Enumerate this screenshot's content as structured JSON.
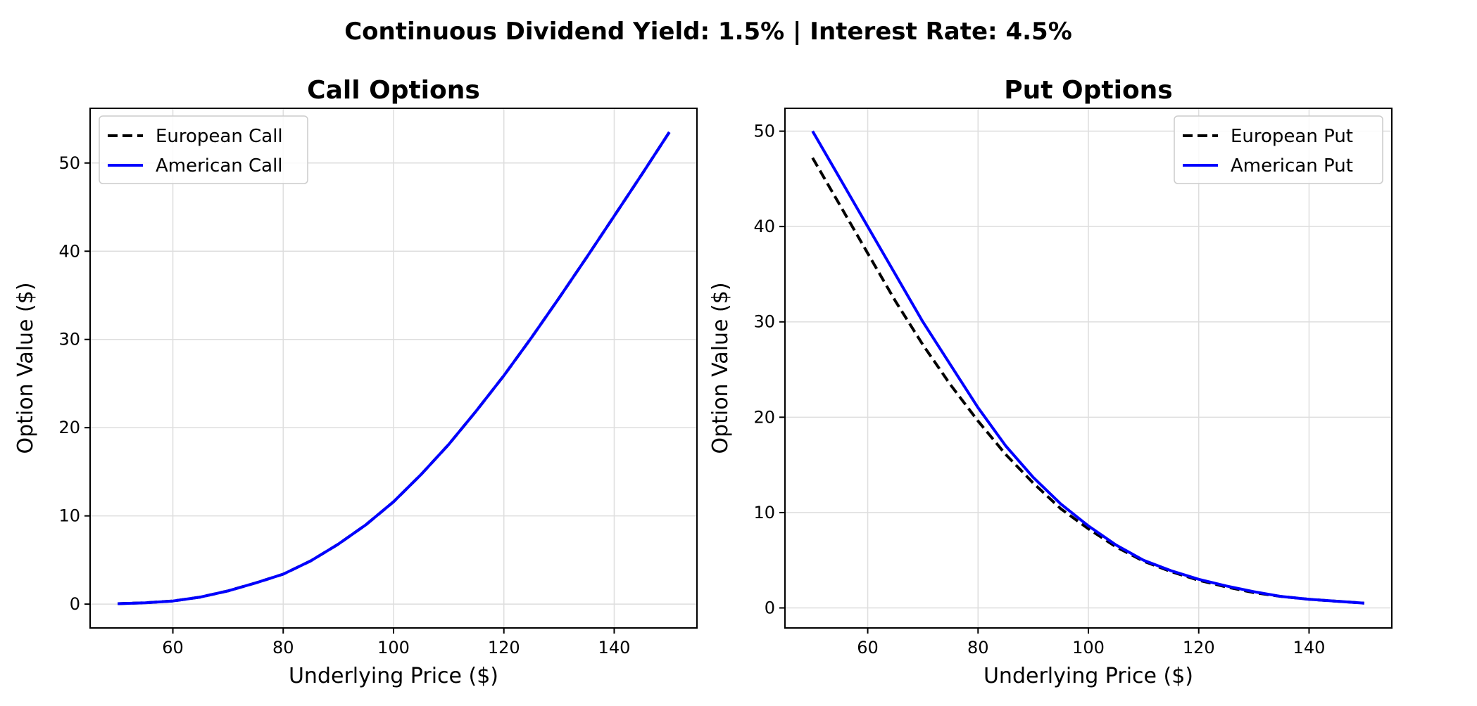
{
  "figure": {
    "suptitle": "Continuous Dividend Yield: 1.5% | Interest Rate: 4.5%"
  },
  "colors": {
    "european": "#000000",
    "american": "#0000ff"
  },
  "chart_data": [
    {
      "type": "line",
      "title": "Call Options",
      "xlabel": "Underlying Price ($)",
      "ylabel": "Option Value ($)",
      "xlim": [
        45,
        155
      ],
      "ylim": [
        -2.7,
        56.2
      ],
      "xticks": [
        60,
        80,
        100,
        120,
        140
      ],
      "yticks": [
        0,
        10,
        20,
        30,
        40,
        50
      ],
      "grid": true,
      "legend_position": "top-left",
      "x": [
        50,
        55,
        60,
        65,
        70,
        75,
        80,
        85,
        90,
        95,
        100,
        105,
        110,
        115,
        120,
        125,
        130,
        135,
        140,
        145,
        150
      ],
      "series": [
        {
          "name": "European Call",
          "style": "dashed",
          "color": "#000000",
          "values": [
            0.05,
            0.15,
            0.35,
            0.8,
            1.5,
            2.4,
            3.4,
            4.9,
            6.8,
            9.0,
            11.6,
            14.7,
            18.1,
            21.9,
            25.9,
            30.2,
            34.7,
            39.3,
            44.0,
            48.7,
            53.5
          ]
        },
        {
          "name": "American Call",
          "style": "solid",
          "color": "#0000ff",
          "values": [
            0.05,
            0.15,
            0.35,
            0.8,
            1.5,
            2.4,
            3.4,
            4.9,
            6.8,
            9.0,
            11.6,
            14.7,
            18.1,
            21.9,
            25.9,
            30.2,
            34.7,
            39.3,
            44.0,
            48.7,
            53.5
          ]
        }
      ]
    },
    {
      "type": "line",
      "title": "Put Options",
      "xlabel": "Underlying Price ($)",
      "ylabel": "Option Value ($)",
      "xlim": [
        45,
        155
      ],
      "ylim": [
        -2.1,
        52.4
      ],
      "xticks": [
        60,
        80,
        100,
        120,
        140
      ],
      "yticks": [
        0,
        10,
        20,
        30,
        40,
        50
      ],
      "grid": true,
      "legend_position": "top-right",
      "x": [
        50,
        55,
        60,
        65,
        70,
        75,
        80,
        85,
        90,
        95,
        100,
        105,
        110,
        115,
        120,
        125,
        130,
        135,
        140,
        145,
        150
      ],
      "series": [
        {
          "name": "European Put",
          "style": "dashed",
          "color": "#000000",
          "values": [
            47.2,
            42.2,
            37.2,
            32.2,
            27.6,
            23.4,
            19.6,
            16.1,
            13.1,
            10.4,
            8.3,
            6.4,
            4.9,
            3.8,
            2.9,
            2.2,
            1.6,
            1.2,
            0.9,
            0.7,
            0.5
          ]
        },
        {
          "name": "American Put",
          "style": "solid",
          "color": "#0000ff",
          "values": [
            50.0,
            45.0,
            40.0,
            35.0,
            30.0,
            25.5,
            21.0,
            17.0,
            13.7,
            10.9,
            8.6,
            6.6,
            5.0,
            3.9,
            3.0,
            2.3,
            1.7,
            1.2,
            0.9,
            0.7,
            0.5
          ]
        }
      ]
    }
  ]
}
